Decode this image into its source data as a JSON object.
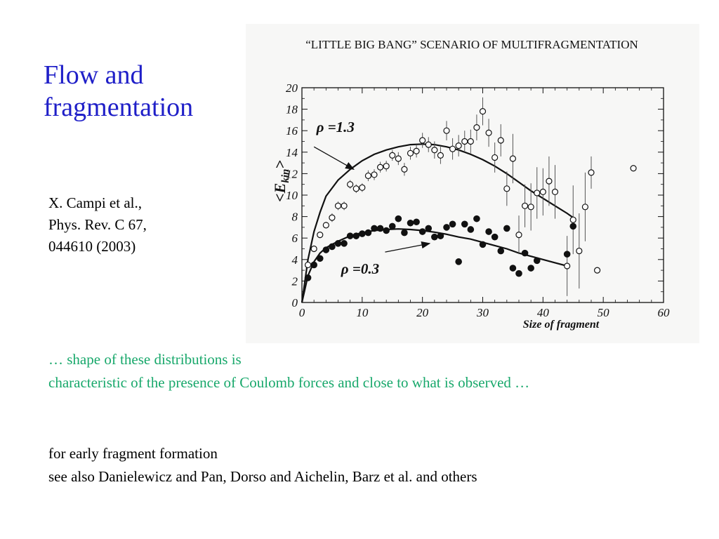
{
  "title": {
    "line1": "Flow and",
    "line2": "fragmentation"
  },
  "citation": {
    "line1": "X. Campi et al.,",
    "line2": "Phys. Rev. C 67,",
    "line3": "044610 (2003)"
  },
  "colors": {
    "title": "#1f1fc8",
    "highlight_text": "#18a86b",
    "body_text": "#000000",
    "figure_bg": "#f7f7f6"
  },
  "body": {
    "green_line1": "… shape of these distributions is",
    "green_line2": "characteristic of the presence of Coulomb forces and close to what is observed …",
    "black_line1": "for early fragment formation",
    "black_line2": "see also Danielewicz and Pan, Dorso and Aichelin, Barz et al. and others"
  },
  "chart_data": {
    "type": "scatter",
    "title": "“LITTLE BIG BANG” SCENARIO OF MULTIFRAGMENTATION",
    "xlabel": "Size of fragment",
    "ylabel": "<E_kin>",
    "xlim": [
      0,
      60
    ],
    "ylim": [
      0,
      20
    ],
    "x_ticks": [
      "0",
      "10",
      "20",
      "30",
      "40",
      "50",
      "60"
    ],
    "y_ticks": [
      "0",
      "2",
      "4",
      "6",
      "8",
      "10",
      "12",
      "14",
      "16",
      "18",
      "20"
    ],
    "grid": false,
    "legend": "none",
    "series": [
      {
        "name": "ρ =1.3",
        "marker": "open-circle",
        "points": [
          [
            1,
            3.5
          ],
          [
            2,
            5
          ],
          [
            3,
            6.3
          ],
          [
            4,
            7.2
          ],
          [
            5,
            7.9
          ],
          [
            6,
            9
          ],
          [
            7,
            9
          ],
          [
            8,
            11
          ],
          [
            9,
            10.6
          ],
          [
            10,
            10.7
          ],
          [
            11,
            11.8
          ],
          [
            12,
            11.9
          ],
          [
            13,
            12.6
          ],
          [
            14,
            12.7
          ],
          [
            15,
            13.7
          ],
          [
            16,
            13.4
          ],
          [
            17,
            12.4
          ],
          [
            18,
            13.9
          ],
          [
            19,
            14.1
          ],
          [
            20,
            15.1
          ],
          [
            21,
            14.7
          ],
          [
            22,
            14.2
          ],
          [
            23,
            13.7
          ],
          [
            24,
            16
          ],
          [
            25,
            14.3
          ],
          [
            26,
            14.6
          ],
          [
            27,
            15
          ],
          [
            28,
            15
          ],
          [
            29,
            16.3
          ],
          [
            30,
            17.8
          ],
          [
            31,
            15.8
          ],
          [
            32,
            13.5
          ],
          [
            33,
            15.1
          ],
          [
            34,
            10.6
          ],
          [
            35,
            13.4
          ],
          [
            36,
            6.3
          ],
          [
            37,
            9
          ],
          [
            38,
            8.9
          ],
          [
            39,
            10.2
          ],
          [
            40,
            10.3
          ],
          [
            41,
            11.3
          ],
          [
            42,
            10.3
          ],
          [
            44,
            3.4
          ],
          [
            45,
            7.7
          ],
          [
            46,
            4.8
          ],
          [
            47,
            8.9
          ],
          [
            48,
            12.1
          ],
          [
            49,
            3
          ],
          [
            55,
            12.5
          ]
        ],
        "error_bars": [
          [
            1,
            0.3
          ],
          [
            2,
            0.3
          ],
          [
            3,
            0.3
          ],
          [
            4,
            0.3
          ],
          [
            5,
            0.4
          ],
          [
            6,
            0.4
          ],
          [
            7,
            0.4
          ],
          [
            8,
            0.4
          ],
          [
            9,
            0.4
          ],
          [
            10,
            0.4
          ],
          [
            11,
            0.5
          ],
          [
            12,
            0.5
          ],
          [
            13,
            0.5
          ],
          [
            14,
            0.5
          ],
          [
            15,
            0.5
          ],
          [
            16,
            0.6
          ],
          [
            17,
            0.6
          ],
          [
            18,
            0.6
          ],
          [
            19,
            0.6
          ],
          [
            20,
            0.7
          ],
          [
            21,
            0.7
          ],
          [
            22,
            0.8
          ],
          [
            23,
            0.8
          ],
          [
            24,
            0.9
          ],
          [
            25,
            1.0
          ],
          [
            26,
            1.0
          ],
          [
            27,
            1.0
          ],
          [
            28,
            1.1
          ],
          [
            29,
            1.2
          ],
          [
            30,
            1.3
          ],
          [
            31,
            1.3
          ],
          [
            32,
            1.4
          ],
          [
            33,
            1.5
          ],
          [
            34,
            1.6
          ],
          [
            35,
            2.3
          ],
          [
            36,
            1.8
          ],
          [
            37,
            2.0
          ],
          [
            38,
            2.2
          ],
          [
            39,
            2.4
          ],
          [
            40,
            2.2
          ],
          [
            41,
            2.3
          ],
          [
            42,
            2.5
          ],
          [
            44,
            2.8
          ],
          [
            45,
            3.2
          ],
          [
            46,
            3.5
          ],
          [
            47,
            3.2
          ],
          [
            48,
            1.5
          ],
          [
            49,
            0
          ],
          [
            55,
            0
          ]
        ],
        "fit_curve": [
          [
            0,
            0
          ],
          [
            1,
            4
          ],
          [
            2,
            6.6
          ],
          [
            3,
            8.4
          ],
          [
            4,
            9.9
          ],
          [
            6,
            11.4
          ],
          [
            8,
            12.4
          ],
          [
            10,
            13.2
          ],
          [
            12,
            13.8
          ],
          [
            14,
            14.2
          ],
          [
            16,
            14.5
          ],
          [
            18,
            14.7
          ],
          [
            20,
            14.75
          ],
          [
            22,
            14.7
          ],
          [
            24,
            14.5
          ],
          [
            26,
            14.2
          ],
          [
            28,
            13.8
          ],
          [
            30,
            13.3
          ],
          [
            32,
            12.7
          ],
          [
            34,
            12
          ],
          [
            36,
            11.2
          ],
          [
            38,
            10.4
          ],
          [
            40,
            9.7
          ],
          [
            42,
            9
          ],
          [
            44,
            8.3
          ],
          [
            45,
            7.9
          ]
        ]
      },
      {
        "name": "ρ =0.3",
        "marker": "filled-circle",
        "points": [
          [
            1,
            2.3
          ],
          [
            2,
            3.5
          ],
          [
            3,
            4.1
          ],
          [
            4,
            4.9
          ],
          [
            5,
            5.2
          ],
          [
            6,
            5.5
          ],
          [
            7,
            5.5
          ],
          [
            8,
            6.2
          ],
          [
            9,
            6.2
          ],
          [
            10,
            6.4
          ],
          [
            11,
            6.5
          ],
          [
            12,
            6.9
          ],
          [
            13,
            6.9
          ],
          [
            14,
            6.7
          ],
          [
            15,
            7.1
          ],
          [
            16,
            7.8
          ],
          [
            17,
            6.5
          ],
          [
            18,
            7.4
          ],
          [
            19,
            7.5
          ],
          [
            20,
            6.6
          ],
          [
            21,
            6.9
          ],
          [
            22,
            6.1
          ],
          [
            23,
            6.2
          ],
          [
            24,
            7
          ],
          [
            25,
            7.3
          ],
          [
            26,
            3.8
          ],
          [
            27,
            7.3
          ],
          [
            28,
            6.8
          ],
          [
            29,
            7.8
          ],
          [
            30,
            5.4
          ],
          [
            31,
            6.6
          ],
          [
            32,
            6.1
          ],
          [
            33,
            4.8
          ],
          [
            34,
            6.9
          ],
          [
            35,
            3.2
          ],
          [
            36,
            2.7
          ],
          [
            37,
            4.6
          ],
          [
            38,
            3.2
          ],
          [
            39,
            3.9
          ],
          [
            44,
            4.5
          ],
          [
            45,
            7.1
          ]
        ],
        "fit_curve": [
          [
            0,
            0
          ],
          [
            1,
            2.5
          ],
          [
            2,
            3.8
          ],
          [
            3,
            4.6
          ],
          [
            4,
            5.1
          ],
          [
            6,
            5.7
          ],
          [
            8,
            6.2
          ],
          [
            10,
            6.5
          ],
          [
            12,
            6.7
          ],
          [
            14,
            6.8
          ],
          [
            16,
            6.85
          ],
          [
            18,
            6.8
          ],
          [
            20,
            6.7
          ],
          [
            22,
            6.55
          ],
          [
            24,
            6.35
          ],
          [
            26,
            6.1
          ],
          [
            28,
            5.9
          ],
          [
            30,
            5.6
          ],
          [
            32,
            5.3
          ],
          [
            34,
            5
          ],
          [
            36,
            4.6
          ],
          [
            38,
            4.3
          ],
          [
            40,
            4
          ],
          [
            42,
            3.7
          ],
          [
            44,
            3.4
          ]
        ]
      }
    ],
    "annotations": [
      {
        "text": "ρ =1.3",
        "at": [
          4.5,
          16
        ]
      },
      {
        "text": "ρ =0.3",
        "at": [
          6.5,
          3.2
        ]
      }
    ]
  }
}
